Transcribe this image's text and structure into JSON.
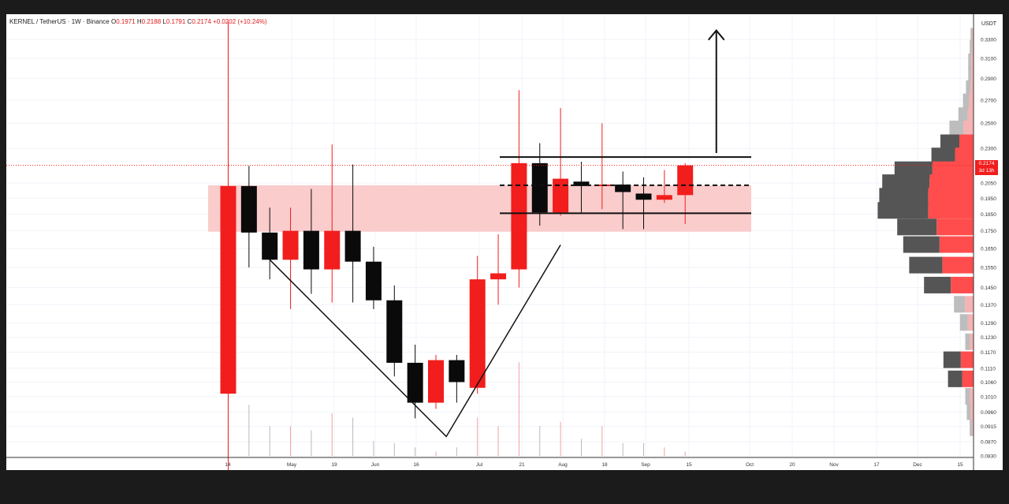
{
  "header": {
    "symbol": "KERNEL / TetherUS · 1W · Binance",
    "o_label": "O",
    "o_value": "0.1971",
    "h_label": "H",
    "h_value": "0.2188",
    "l_label": "L",
    "l_value": "0.1791",
    "c_label": "C",
    "c_value": "0.2174",
    "change": "+0.0202 (+10.24%)"
  },
  "axis": {
    "currency": "USDT",
    "current_price": "0.2174",
    "countdown": "3d 13h"
  },
  "colors": {
    "up": "#f21d1d",
    "down": "#0a0a0a",
    "zone": "#f9c6c6",
    "profile_up": "#ff4d4d",
    "profile_down": "#555555",
    "profile_up_light": "#f6b3b3",
    "profile_down_light": "#bdbdbd"
  },
  "chart_data": {
    "type": "candlestick",
    "symbol": "KERNEL / TetherUS",
    "interval": "1W",
    "exchange": "Binance",
    "y_scale": "log",
    "ylim": [
      0.083,
      0.35
    ],
    "y_ticks": [
      "0.3300",
      "0.3100",
      "0.2900",
      "0.2700",
      "0.2500",
      "0.2300",
      "0.2050",
      "0.1950",
      "0.1850",
      "0.1750",
      "0.1650",
      "0.1550",
      "0.1450",
      "0.1370",
      "0.1290",
      "0.1230",
      "0.1170",
      "0.1110",
      "0.1060",
      "0.1010",
      "0.0960",
      "0.0915",
      "0.0870",
      "0.0830"
    ],
    "x_ticks": [
      "14",
      "May",
      "19",
      "Jun",
      "16",
      "Jul",
      "21",
      "Aug",
      "18",
      "Sep",
      "15",
      "Oct",
      "20",
      "Nov",
      "17",
      "Dec",
      "15"
    ],
    "candles": [
      {
        "week": 1,
        "o": 0.102,
        "h": 0.35,
        "l": 0.078,
        "c": 0.203
      },
      {
        "week": 2,
        "o": 0.203,
        "h": 0.217,
        "l": 0.155,
        "c": 0.174
      },
      {
        "week": 3,
        "o": 0.174,
        "h": 0.189,
        "l": 0.149,
        "c": 0.159
      },
      {
        "week": 4,
        "o": 0.159,
        "h": 0.189,
        "l": 0.135,
        "c": 0.175
      },
      {
        "week": 5,
        "o": 0.175,
        "h": 0.201,
        "l": 0.142,
        "c": 0.154
      },
      {
        "week": 6,
        "o": 0.154,
        "h": 0.233,
        "l": 0.138,
        "c": 0.175
      },
      {
        "week": 7,
        "o": 0.175,
        "h": 0.218,
        "l": 0.138,
        "c": 0.158
      },
      {
        "week": 8,
        "o": 0.158,
        "h": 0.166,
        "l": 0.135,
        "c": 0.139
      },
      {
        "week": 9,
        "o": 0.139,
        "h": 0.146,
        "l": 0.108,
        "c": 0.113
      },
      {
        "week": 10,
        "o": 0.113,
        "h": 0.12,
        "l": 0.094,
        "c": 0.099
      },
      {
        "week": 11,
        "o": 0.099,
        "h": 0.116,
        "l": 0.097,
        "c": 0.114
      },
      {
        "week": 12,
        "o": 0.114,
        "h": 0.116,
        "l": 0.099,
        "c": 0.106
      },
      {
        "week": 13,
        "o": 0.104,
        "h": 0.161,
        "l": 0.102,
        "c": 0.149
      },
      {
        "week": 14,
        "o": 0.149,
        "h": 0.173,
        "l": 0.137,
        "c": 0.152
      },
      {
        "week": 15,
        "o": 0.154,
        "h": 0.279,
        "l": 0.145,
        "c": 0.219
      },
      {
        "week": 16,
        "o": 0.219,
        "h": 0.234,
        "l": 0.178,
        "c": 0.186
      },
      {
        "week": 17,
        "o": 0.186,
        "h": 0.263,
        "l": 0.184,
        "c": 0.208
      },
      {
        "week": 18,
        "o": 0.206,
        "h": 0.22,
        "l": 0.186,
        "c": 0.203
      },
      {
        "week": 19,
        "o": 0.203,
        "h": 0.25,
        "l": 0.188,
        "c": 0.204
      },
      {
        "week": 20,
        "o": 0.204,
        "h": 0.213,
        "l": 0.176,
        "c": 0.199
      },
      {
        "week": 21,
        "o": 0.198,
        "h": 0.209,
        "l": 0.176,
        "c": 0.194
      },
      {
        "week": 22,
        "o": 0.194,
        "h": 0.214,
        "l": 0.192,
        "c": 0.197
      },
      {
        "week": 23,
        "o": 0.197,
        "h": 0.219,
        "l": 0.179,
        "c": 0.2174
      }
    ],
    "volume": [
      1.0,
      0.12,
      0.07,
      0.07,
      0.06,
      0.1,
      0.09,
      0.035,
      0.03,
      0.02,
      0.01,
      0.02,
      0.09,
      0.07,
      0.22,
      0.07,
      0.08,
      0.04,
      0.07,
      0.03,
      0.03,
      0.02,
      0.01
    ],
    "levels": {
      "range_top": 0.2235,
      "range_mid": 0.2035,
      "range_bottom": 0.1855,
      "zone_top": 0.2035,
      "zone_bottom": 0.1745
    },
    "volume_profile": [
      {
        "price": 0.333,
        "down": 2,
        "up": 2
      },
      {
        "price": 0.32,
        "down": 3,
        "up": 2
      },
      {
        "price": 0.306,
        "down": 4,
        "up": 3
      },
      {
        "price": 0.293,
        "down": 4,
        "up": 3
      },
      {
        "price": 0.28,
        "down": 6,
        "up": 4
      },
      {
        "price": 0.268,
        "down": 8,
        "up": 6
      },
      {
        "price": 0.256,
        "down": 12,
        "up": 8
      },
      {
        "price": 0.245,
        "down": 18,
        "up": 14
      },
      {
        "price": 0.234,
        "down": 24,
        "up": 20
      },
      {
        "price": 0.224,
        "down": 30,
        "up": 26
      },
      {
        "price": 0.214,
        "down": 48,
        "up": 58
      },
      {
        "price": 0.205,
        "down": 60,
        "up": 62
      },
      {
        "price": 0.196,
        "down": 62,
        "up": 64
      },
      {
        "price": 0.187,
        "down": 64,
        "up": 64
      },
      {
        "price": 0.177,
        "down": 50,
        "up": 52
      },
      {
        "price": 0.167,
        "down": 46,
        "up": 48
      },
      {
        "price": 0.156,
        "down": 42,
        "up": 44
      },
      {
        "price": 0.146,
        "down": 34,
        "up": 32
      },
      {
        "price": 0.137,
        "down": 14,
        "up": 12
      },
      {
        "price": 0.129,
        "down": 10,
        "up": 8
      },
      {
        "price": 0.121,
        "down": 6,
        "up": 5
      },
      {
        "price": 0.114,
        "down": 22,
        "up": 18
      },
      {
        "price": 0.107,
        "down": 18,
        "up": 16
      },
      {
        "price": 0.101,
        "down": 6,
        "up": 5
      },
      {
        "price": 0.096,
        "down": 5,
        "up": 4
      },
      {
        "price": 0.091,
        "down": 3,
        "up": 2
      }
    ],
    "annotations": [
      {
        "type": "v-pattern",
        "points": [
          [
            3,
            0.159
          ],
          [
            11.5,
            0.0885
          ],
          [
            17,
            0.167
          ]
        ]
      },
      {
        "type": "arrow",
        "from": [
          24.5,
          0.2265
        ],
        "to": [
          24.5,
          0.34
        ]
      }
    ]
  }
}
